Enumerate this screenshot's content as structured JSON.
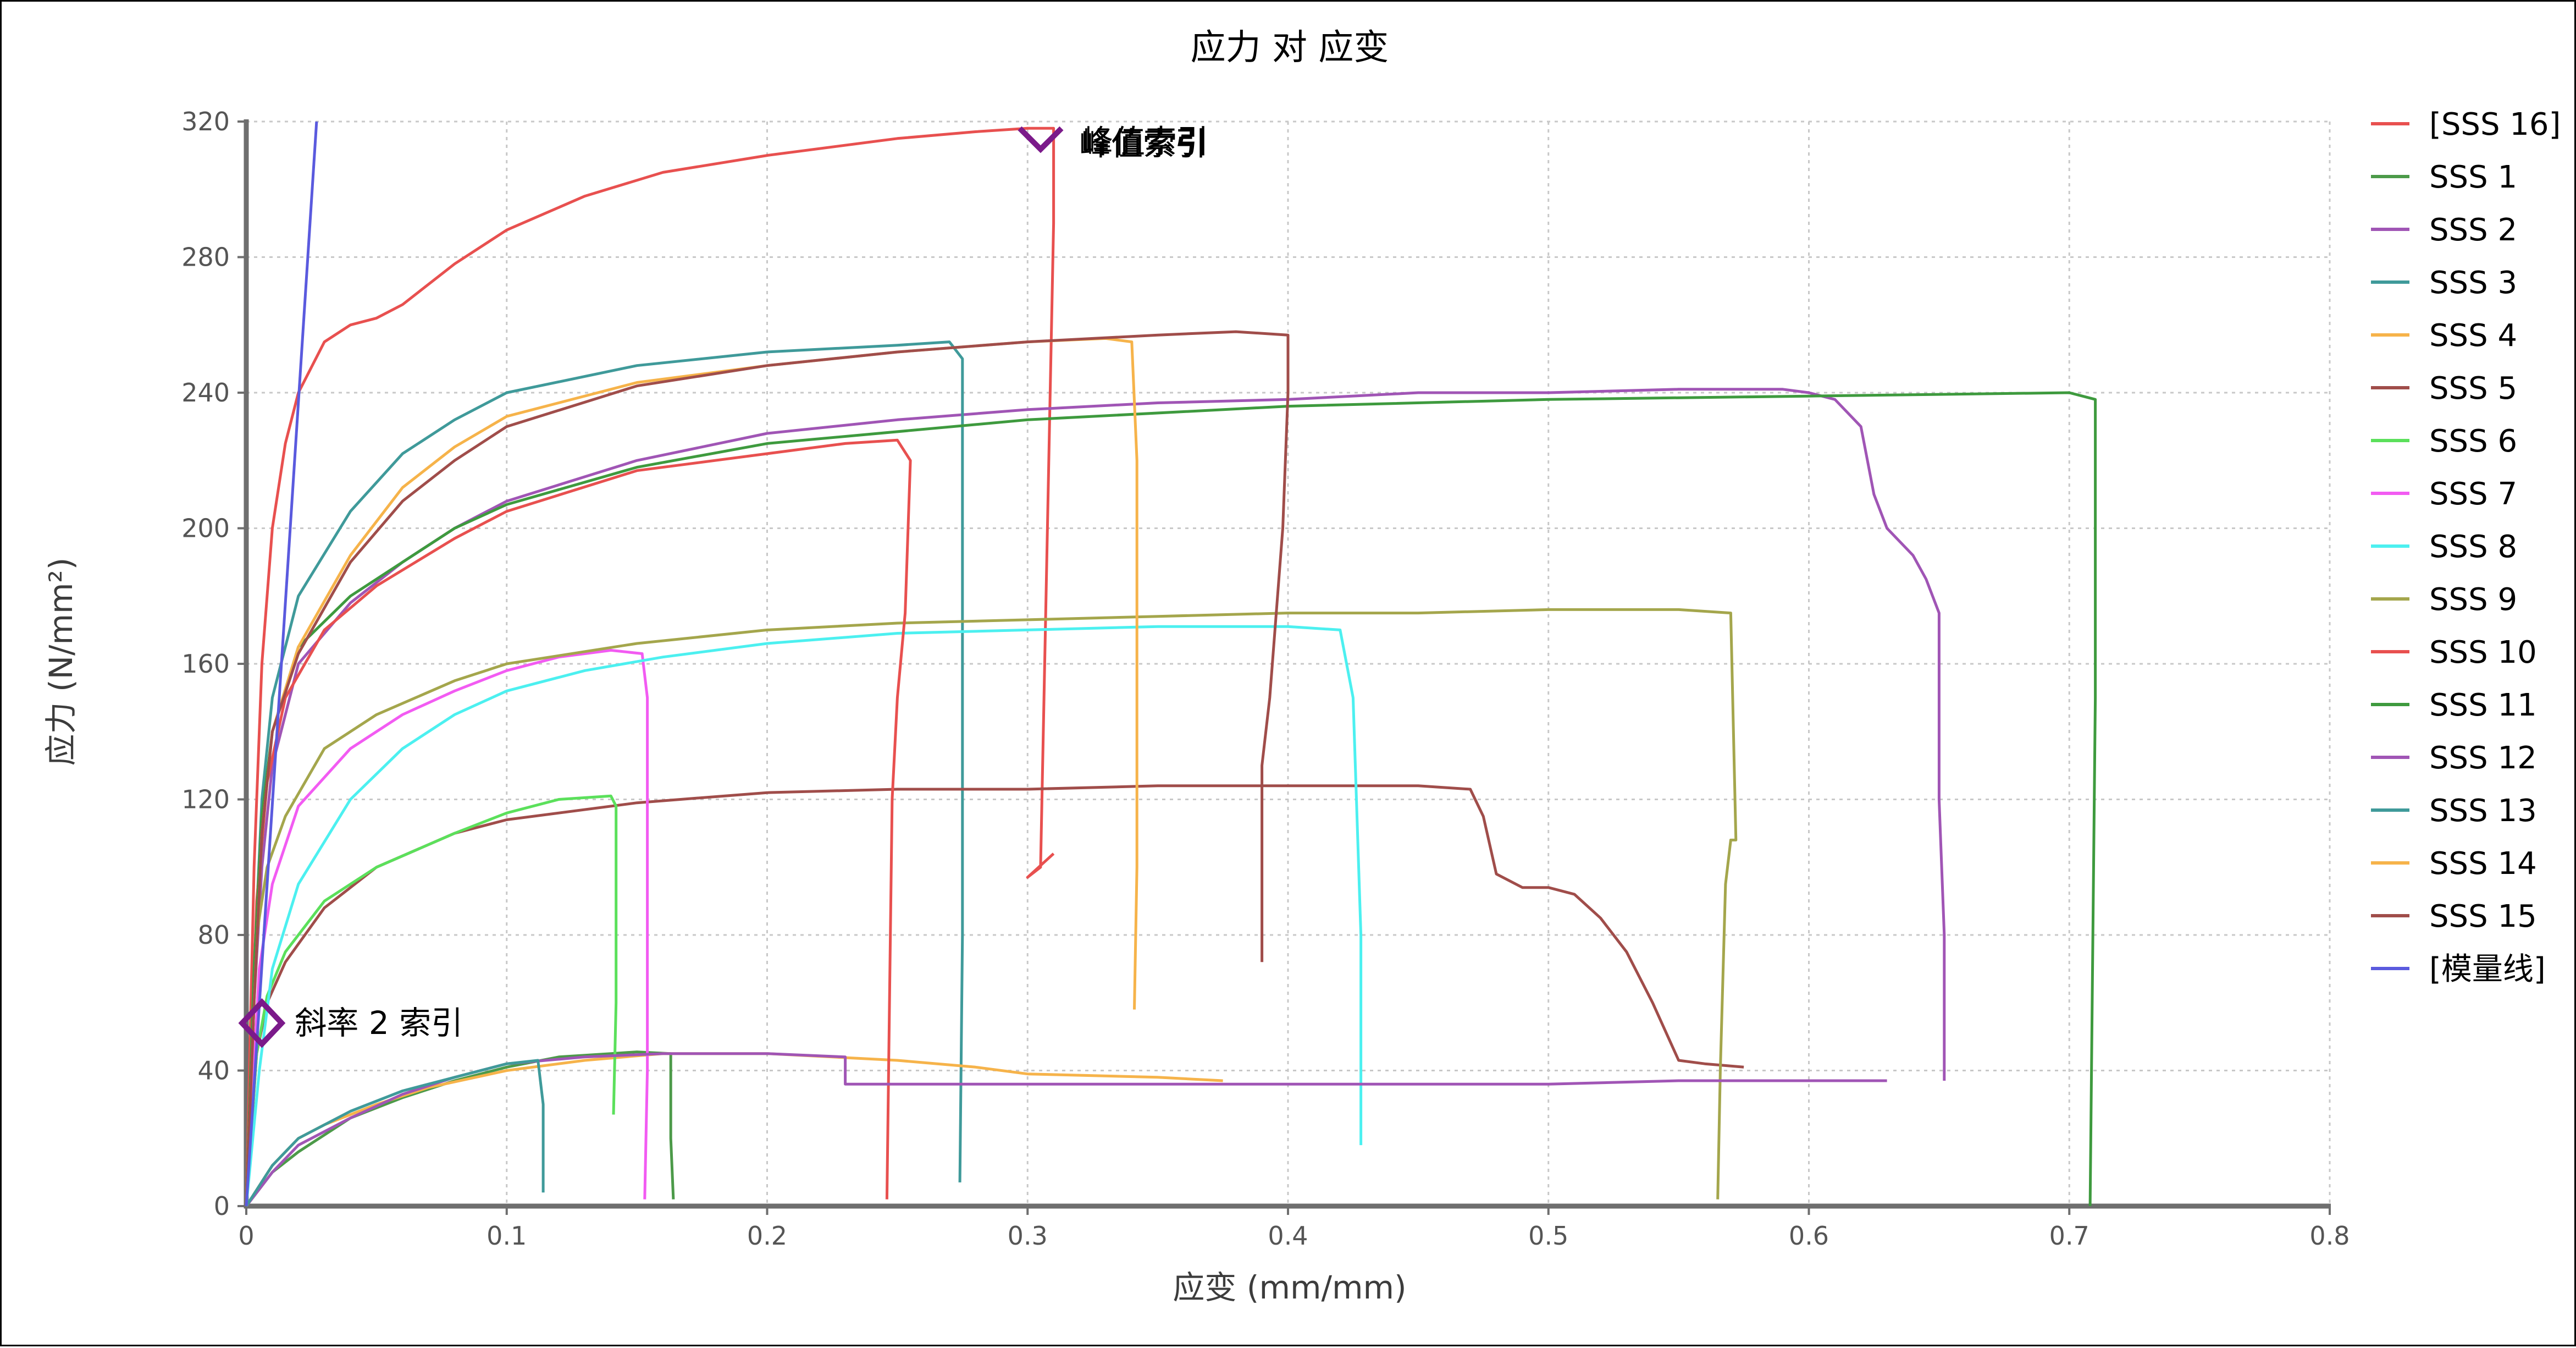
{
  "chart_data": {
    "type": "line",
    "title": "应力 对 应变",
    "xlabel": "应变 (mm/mm)",
    "ylabel": "应力 (N/mm²)",
    "xlim": [
      0,
      0.8
    ],
    "ylim": [
      0,
      320
    ],
    "xticks": [
      0,
      0.1,
      0.2,
      0.3,
      0.4,
      0.5,
      0.6,
      0.7,
      0.8
    ],
    "yticks": [
      0,
      40,
      80,
      120,
      160,
      200,
      240,
      280,
      320
    ],
    "xtick_labels": [
      "0",
      "0.1",
      "0.2",
      "0.3",
      "0.4",
      "0.5",
      "0.6",
      "0.7",
      "0.8"
    ],
    "ytick_labels": [
      "0",
      "40",
      "80",
      "120",
      "160",
      "200",
      "240",
      "280",
      "320"
    ],
    "grid": true,
    "legend_position": "right",
    "series": [
      {
        "name": "[SSS 16]",
        "color": "#e8504f",
        "x": [
          0,
          0.003,
          0.006,
          0.01,
          0.015,
          0.02,
          0.03,
          0.04,
          0.05,
          0.06,
          0.08,
          0.1,
          0.13,
          0.16,
          0.2,
          0.25,
          0.28,
          0.3,
          0.31,
          0.31,
          0.305,
          0.3,
          0.31
        ],
        "y": [
          0,
          100,
          160,
          200,
          225,
          240,
          255,
          260,
          262,
          266,
          278,
          288,
          298,
          305,
          310,
          315,
          317,
          318,
          318,
          290,
          100,
          97,
          104
        ]
      },
      {
        "name": "SSS 1",
        "color": "#4c9a49",
        "x": [
          0,
          0.01,
          0.02,
          0.04,
          0.06,
          0.08,
          0.1,
          0.12,
          0.14,
          0.15,
          0.163,
          0.163,
          0.164
        ],
        "y": [
          0,
          10,
          16,
          26,
          32,
          37,
          41,
          44,
          45,
          45.5,
          45,
          20,
          2
        ]
      },
      {
        "name": "SSS 2",
        "color": "#a055b5",
        "x": [
          0,
          0.003,
          0.006,
          0.01,
          0.02,
          0.04,
          0.06,
          0.08,
          0.1,
          0.15,
          0.2,
          0.25,
          0.3,
          0.35,
          0.4,
          0.45,
          0.5,
          0.55,
          0.59,
          0.6,
          0.61,
          0.62,
          0.625,
          0.63,
          0.64,
          0.645,
          0.65,
          0.65,
          0.652,
          0.652
        ],
        "y": [
          0,
          60,
          100,
          130,
          160,
          178,
          190,
          200,
          208,
          220,
          228,
          232,
          235,
          237,
          238,
          240,
          240,
          241,
          241,
          240,
          238,
          230,
          210,
          200,
          192,
          185,
          175,
          120,
          80,
          37
        ]
      },
      {
        "name": "SSS 3",
        "color": "#3f9a9a",
        "x": [
          0,
          0.003,
          0.006,
          0.01,
          0.02,
          0.04,
          0.06,
          0.08,
          0.1,
          0.15,
          0.2,
          0.25,
          0.27,
          0.275,
          0.275,
          0.274
        ],
        "y": [
          0,
          70,
          120,
          150,
          180,
          205,
          222,
          232,
          240,
          248,
          252,
          254,
          255,
          250,
          80,
          7
        ]
      },
      {
        "name": "SSS 4",
        "color": "#f6b34a",
        "x": [
          0,
          0.01,
          0.02,
          0.03,
          0.05,
          0.07,
          0.1,
          0.13,
          0.16,
          0.2,
          0.25,
          0.28,
          0.3,
          0.35,
          0.375
        ],
        "y": [
          0,
          12,
          20,
          24,
          30,
          35,
          40,
          43,
          45,
          45,
          43,
          41,
          39,
          38,
          37
        ]
      },
      {
        "name": "SSS 5",
        "color": "#a04d4a",
        "x": [
          0,
          0.004,
          0.008,
          0.015,
          0.03,
          0.05,
          0.08,
          0.1,
          0.15,
          0.2,
          0.25,
          0.3,
          0.35,
          0.4,
          0.45,
          0.47,
          0.475,
          0.48,
          0.49,
          0.5,
          0.51,
          0.52,
          0.53,
          0.54,
          0.55,
          0.56,
          0.575
        ],
        "y": [
          0,
          45,
          60,
          72,
          88,
          100,
          110,
          114,
          119,
          122,
          123,
          123,
          124,
          124,
          124,
          123,
          115,
          98,
          94,
          94,
          92,
          85,
          75,
          60,
          43,
          42,
          41
        ]
      },
      {
        "name": "SSS 6",
        "color": "#5be05b",
        "x": [
          0,
          0.004,
          0.008,
          0.015,
          0.03,
          0.05,
          0.08,
          0.1,
          0.12,
          0.14,
          0.142,
          0.142,
          0.141
        ],
        "y": [
          0,
          45,
          62,
          75,
          90,
          100,
          110,
          116,
          120,
          121,
          118,
          60,
          27
        ]
      },
      {
        "name": "SSS 7",
        "color": "#f25bf2",
        "x": [
          0,
          0.005,
          0.01,
          0.02,
          0.04,
          0.06,
          0.08,
          0.1,
          0.12,
          0.14,
          0.152,
          0.154,
          0.154,
          0.153
        ],
        "y": [
          0,
          70,
          95,
          118,
          135,
          145,
          152,
          158,
          162,
          164,
          163,
          150,
          40,
          2
        ]
      },
      {
        "name": "SSS 8",
        "color": "#4cf0f0",
        "x": [
          0,
          0.005,
          0.01,
          0.02,
          0.04,
          0.06,
          0.08,
          0.1,
          0.13,
          0.16,
          0.2,
          0.25,
          0.3,
          0.35,
          0.4,
          0.42,
          0.425,
          0.428,
          0.428
        ],
        "y": [
          0,
          40,
          70,
          95,
          120,
          135,
          145,
          152,
          158,
          162,
          166,
          169,
          170,
          171,
          171,
          170,
          150,
          80,
          18
        ]
      },
      {
        "name": "SSS 9",
        "color": "#a4a64c",
        "x": [
          0,
          0.004,
          0.008,
          0.015,
          0.03,
          0.05,
          0.08,
          0.1,
          0.15,
          0.2,
          0.25,
          0.3,
          0.35,
          0.4,
          0.45,
          0.5,
          0.55,
          0.57,
          0.572,
          0.57,
          0.568,
          0.566,
          0.565
        ],
        "y": [
          0,
          80,
          100,
          115,
          135,
          145,
          155,
          160,
          166,
          170,
          172,
          173,
          174,
          175,
          175,
          176,
          176,
          175,
          108,
          108,
          95,
          40,
          2
        ]
      },
      {
        "name": "SSS 10",
        "color": "#e8504f",
        "x": [
          0,
          0.004,
          0.008,
          0.015,
          0.03,
          0.05,
          0.08,
          0.1,
          0.15,
          0.2,
          0.23,
          0.25,
          0.255,
          0.253,
          0.25,
          0.248,
          0.246
        ],
        "y": [
          0,
          90,
          125,
          150,
          170,
          183,
          197,
          205,
          217,
          222,
          225,
          226,
          220,
          175,
          150,
          120,
          2
        ]
      },
      {
        "name": "SSS 11",
        "color": "#3e9a3e",
        "x": [
          0,
          0.003,
          0.006,
          0.01,
          0.02,
          0.04,
          0.06,
          0.08,
          0.1,
          0.15,
          0.2,
          0.3,
          0.4,
          0.5,
          0.6,
          0.7,
          0.71,
          0.71,
          0.708
        ],
        "y": [
          0,
          70,
          115,
          140,
          165,
          180,
          190,
          200,
          207,
          218,
          225,
          232,
          236,
          238,
          239,
          240,
          238,
          150,
          0
        ]
      },
      {
        "name": "SSS 12",
        "color": "#a055b5",
        "x": [
          0,
          0.01,
          0.02,
          0.04,
          0.06,
          0.08,
          0.1,
          0.13,
          0.16,
          0.2,
          0.23,
          0.23,
          0.28,
          0.3,
          0.4,
          0.5,
          0.55,
          0.6,
          0.63
        ],
        "y": [
          0,
          10,
          18,
          26,
          33,
          38,
          42,
          44,
          45,
          45,
          44,
          36,
          36,
          36,
          36,
          36,
          37,
          37,
          37
        ]
      },
      {
        "name": "SSS 13",
        "color": "#3f9a9a",
        "x": [
          0,
          0.01,
          0.02,
          0.04,
          0.06,
          0.08,
          0.1,
          0.112,
          0.114,
          0.114
        ],
        "y": [
          0,
          12,
          20,
          28,
          34,
          38,
          42,
          43,
          30,
          4
        ]
      },
      {
        "name": "SSS 14",
        "color": "#f6b34a",
        "x": [
          0,
          0.003,
          0.006,
          0.01,
          0.02,
          0.04,
          0.06,
          0.08,
          0.1,
          0.15,
          0.2,
          0.25,
          0.3,
          0.33,
          0.34,
          0.342,
          0.342,
          0.341
        ],
        "y": [
          0,
          60,
          110,
          140,
          165,
          192,
          212,
          224,
          233,
          243,
          248,
          252,
          255,
          256,
          255,
          220,
          100,
          58
        ]
      },
      {
        "name": "SSS 15",
        "color": "#a04d4a",
        "x": [
          0,
          0.003,
          0.006,
          0.01,
          0.02,
          0.04,
          0.06,
          0.08,
          0.1,
          0.15,
          0.2,
          0.25,
          0.3,
          0.35,
          0.38,
          0.4,
          0.4,
          0.398,
          0.393,
          0.39,
          0.39
        ],
        "y": [
          0,
          60,
          110,
          140,
          163,
          190,
          208,
          220,
          230,
          242,
          248,
          252,
          255,
          257,
          258,
          257,
          240,
          200,
          150,
          130,
          72
        ]
      },
      {
        "name": "[模量线]",
        "color": "#5a5ade",
        "x": [
          0,
          0.027
        ],
        "y": [
          0,
          320
        ]
      }
    ],
    "annotations": [
      {
        "label": "斜率 2 索引",
        "x": 0.006,
        "y": 54,
        "marker": "diamond"
      },
      {
        "label": "峰值索引",
        "x": 0.305,
        "y": 318,
        "marker": "diamond-open-top"
      },
      {
        "label": "峰值索引",
        "x": 0.305,
        "y": 318,
        "marker": "overlap"
      }
    ],
    "annotation_color": "#7b1a8a"
  }
}
